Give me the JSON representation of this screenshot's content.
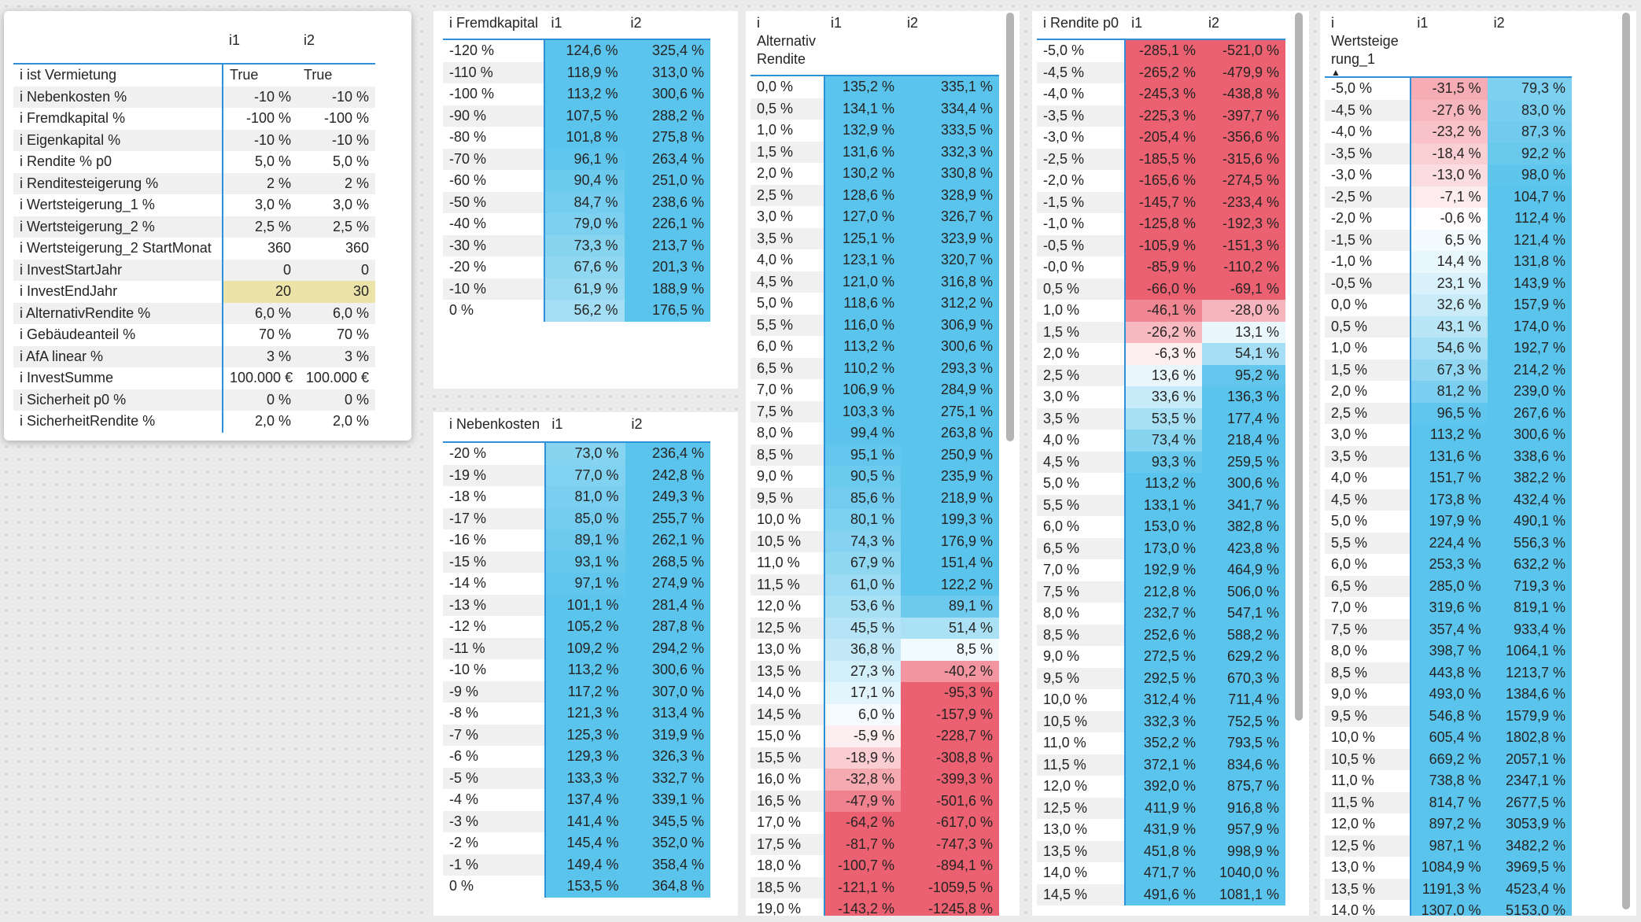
{
  "params": {
    "headers": [
      "",
      "i1",
      "i2"
    ],
    "rows": [
      {
        "label": "i ist Vermietung",
        "v1": "True",
        "v2": "True"
      },
      {
        "label": "i Nebenkosten %",
        "v1": "-10 %",
        "v2": "-10 %"
      },
      {
        "label": "i Fremdkapital %",
        "v1": "-100 %",
        "v2": "-100 %"
      },
      {
        "label": "i Eigenkapital %",
        "v1": "-10 %",
        "v2": "-10 %"
      },
      {
        "label": "i Rendite % p0",
        "v1": "5,0 %",
        "v2": "5,0 %"
      },
      {
        "label": "i Renditesteigerung %",
        "v1": "2 %",
        "v2": "2 %"
      },
      {
        "label": "i Wertsteigerung_1 %",
        "v1": "3,0 %",
        "v2": "3,0 %"
      },
      {
        "label": "i Wertsteigerung_2 %",
        "v1": "2,5 %",
        "v2": "2,5 %"
      },
      {
        "label": "i Wertsteigerung_2 StartMonat",
        "v1": "360",
        "v2": "360"
      },
      {
        "label": "i InvestStartJahr",
        "v1": "0",
        "v2": "0"
      },
      {
        "label": "i InvestEndJahr",
        "v1": "20",
        "v2": "30"
      },
      {
        "label": "i AlternativRendite %",
        "v1": "6,0 %",
        "v2": "6,0 %"
      },
      {
        "label": "i Gebäudeanteil %",
        "v1": "70 %",
        "v2": "70 %"
      },
      {
        "label": "i AfA linear %",
        "v1": "3 %",
        "v2": "3 %"
      },
      {
        "label": "i InvestSumme",
        "v1": "100.000 €",
        "v2": "100.000 €"
      },
      {
        "label": "i Sicherheit p0 %",
        "v1": "0 %",
        "v2": "0 %"
      },
      {
        "label": "i SicherheitRendite %",
        "v1": "2,0 %",
        "v2": "2,0 %"
      }
    ]
  },
  "fremdkapital": {
    "headers": [
      "i Fremdkapital",
      "i1",
      "i2"
    ],
    "rows": [
      [
        "-120 %",
        "124,6 %",
        "325,4 %"
      ],
      [
        "-110 %",
        "118,9 %",
        "313,0 %"
      ],
      [
        "-100 %",
        "113,2 %",
        "300,6 %"
      ],
      [
        "-90 %",
        "107,5 %",
        "288,2 %"
      ],
      [
        "-80 %",
        "101,8 %",
        "275,8 %"
      ],
      [
        "-70 %",
        "96,1 %",
        "263,4 %"
      ],
      [
        "-60 %",
        "90,4 %",
        "251,0 %"
      ],
      [
        "-50 %",
        "84,7 %",
        "238,6 %"
      ],
      [
        "-40 %",
        "79,0 %",
        "226,1 %"
      ],
      [
        "-30 %",
        "73,3 %",
        "213,7 %"
      ],
      [
        "-20 %",
        "67,6 %",
        "201,3 %"
      ],
      [
        "-10 %",
        "61,9 %",
        "188,9 %"
      ],
      [
        "0 %",
        "56,2 %",
        "176,5 %"
      ]
    ]
  },
  "nebenkosten": {
    "headers": [
      "i Nebenkosten",
      "i1",
      "i2"
    ],
    "rows": [
      [
        "-20 %",
        "73,0 %",
        "236,4 %"
      ],
      [
        "-19 %",
        "77,0 %",
        "242,8 %"
      ],
      [
        "-18 %",
        "81,0 %",
        "249,3 %"
      ],
      [
        "-17 %",
        "85,0 %",
        "255,7 %"
      ],
      [
        "-16 %",
        "89,1 %",
        "262,1 %"
      ],
      [
        "-15 %",
        "93,1 %",
        "268,5 %"
      ],
      [
        "-14 %",
        "97,1 %",
        "274,9 %"
      ],
      [
        "-13 %",
        "101,1 %",
        "281,4 %"
      ],
      [
        "-12 %",
        "105,2 %",
        "287,8 %"
      ],
      [
        "-11 %",
        "109,2 %",
        "294,2 %"
      ],
      [
        "-10 %",
        "113,2 %",
        "300,6 %"
      ],
      [
        "-9 %",
        "117,2 %",
        "307,0 %"
      ],
      [
        "-8 %",
        "121,3 %",
        "313,4 %"
      ],
      [
        "-7 %",
        "125,3 %",
        "319,9 %"
      ],
      [
        "-6 %",
        "129,3 %",
        "326,3 %"
      ],
      [
        "-5 %",
        "133,3 %",
        "332,7 %"
      ],
      [
        "-4 %",
        "137,4 %",
        "339,1 %"
      ],
      [
        "-3 %",
        "141,4 %",
        "345,5 %"
      ],
      [
        "-2 %",
        "145,4 %",
        "352,0 %"
      ],
      [
        "-1 %",
        "149,4 %",
        "358,4 %"
      ],
      [
        "0 %",
        "153,5 %",
        "364,8 %"
      ]
    ]
  },
  "alternativ": {
    "headers": [
      "i Alternativ Rendite",
      "i1",
      "i2"
    ],
    "rows": [
      [
        "0,0 %",
        "135,2 %",
        "335,1 %"
      ],
      [
        "0,5 %",
        "134,1 %",
        "334,4 %"
      ],
      [
        "1,0 %",
        "132,9 %",
        "333,5 %"
      ],
      [
        "1,5 %",
        "131,6 %",
        "332,3 %"
      ],
      [
        "2,0 %",
        "130,2 %",
        "330,8 %"
      ],
      [
        "2,5 %",
        "128,6 %",
        "328,9 %"
      ],
      [
        "3,0 %",
        "127,0 %",
        "326,7 %"
      ],
      [
        "3,5 %",
        "125,1 %",
        "323,9 %"
      ],
      [
        "4,0 %",
        "123,1 %",
        "320,7 %"
      ],
      [
        "4,5 %",
        "121,0 %",
        "316,8 %"
      ],
      [
        "5,0 %",
        "118,6 %",
        "312,2 %"
      ],
      [
        "5,5 %",
        "116,0 %",
        "306,9 %"
      ],
      [
        "6,0 %",
        "113,2 %",
        "300,6 %"
      ],
      [
        "6,5 %",
        "110,2 %",
        "293,3 %"
      ],
      [
        "7,0 %",
        "106,9 %",
        "284,9 %"
      ],
      [
        "7,5 %",
        "103,3 %",
        "275,1 %"
      ],
      [
        "8,0 %",
        "99,4 %",
        "263,8 %"
      ],
      [
        "8,5 %",
        "95,1 %",
        "250,9 %"
      ],
      [
        "9,0 %",
        "90,5 %",
        "235,9 %"
      ],
      [
        "9,5 %",
        "85,6 %",
        "218,9 %"
      ],
      [
        "10,0 %",
        "80,1 %",
        "199,3 %"
      ],
      [
        "10,5 %",
        "74,3 %",
        "176,9 %"
      ],
      [
        "11,0 %",
        "67,9 %",
        "151,4 %"
      ],
      [
        "11,5 %",
        "61,0 %",
        "122,2 %"
      ],
      [
        "12,0 %",
        "53,6 %",
        "89,1 %"
      ],
      [
        "12,5 %",
        "45,5 %",
        "51,4 %"
      ],
      [
        "13,0 %",
        "36,8 %",
        "8,5 %"
      ],
      [
        "13,5 %",
        "27,3 %",
        "-40,2 %"
      ],
      [
        "14,0 %",
        "17,1 %",
        "-95,3 %"
      ],
      [
        "14,5 %",
        "6,0 %",
        "-157,9 %"
      ],
      [
        "15,0 %",
        "-5,9 %",
        "-228,7 %"
      ],
      [
        "15,5 %",
        "-18,9 %",
        "-308,8 %"
      ],
      [
        "16,0 %",
        "-32,8 %",
        "-399,3 %"
      ],
      [
        "16,5 %",
        "-47,9 %",
        "-501,6 %"
      ],
      [
        "17,0 %",
        "-64,2 %",
        "-617,0 %"
      ],
      [
        "17,5 %",
        "-81,7 %",
        "-747,3 %"
      ],
      [
        "18,0 %",
        "-100,7 %",
        "-894,1 %"
      ],
      [
        "18,5 %",
        "-121,1 %",
        "-1059,5 %"
      ],
      [
        "19,0 %",
        "-143,2 %",
        "-1245,8 %"
      ]
    ]
  },
  "rendite": {
    "headers": [
      "i Rendite p0",
      "i1",
      "i2"
    ],
    "rows": [
      [
        "-5,0 %",
        "-285,1 %",
        "-521,0 %"
      ],
      [
        "-4,5 %",
        "-265,2 %",
        "-479,9 %"
      ],
      [
        "-4,0 %",
        "-245,3 %",
        "-438,8 %"
      ],
      [
        "-3,5 %",
        "-225,3 %",
        "-397,7 %"
      ],
      [
        "-3,0 %",
        "-205,4 %",
        "-356,6 %"
      ],
      [
        "-2,5 %",
        "-185,5 %",
        "-315,6 %"
      ],
      [
        "-2,0 %",
        "-165,6 %",
        "-274,5 %"
      ],
      [
        "-1,5 %",
        "-145,7 %",
        "-233,4 %"
      ],
      [
        "-1,0 %",
        "-125,8 %",
        "-192,3 %"
      ],
      [
        "-0,5 %",
        "-105,9 %",
        "-151,3 %"
      ],
      [
        "-0,0 %",
        "-85,9 %",
        "-110,2 %"
      ],
      [
        "0,5 %",
        "-66,0 %",
        "-69,1 %"
      ],
      [
        "1,0 %",
        "-46,1 %",
        "-28,0 %"
      ],
      [
        "1,5 %",
        "-26,2 %",
        "13,1 %"
      ],
      [
        "2,0 %",
        "-6,3 %",
        "54,1 %"
      ],
      [
        "2,5 %",
        "13,6 %",
        "95,2 %"
      ],
      [
        "3,0 %",
        "33,6 %",
        "136,3 %"
      ],
      [
        "3,5 %",
        "53,5 %",
        "177,4 %"
      ],
      [
        "4,0 %",
        "73,4 %",
        "218,4 %"
      ],
      [
        "4,5 %",
        "93,3 %",
        "259,5 %"
      ],
      [
        "5,0 %",
        "113,2 %",
        "300,6 %"
      ],
      [
        "5,5 %",
        "133,1 %",
        "341,7 %"
      ],
      [
        "6,0 %",
        "153,0 %",
        "382,8 %"
      ],
      [
        "6,5 %",
        "173,0 %",
        "423,8 %"
      ],
      [
        "7,0 %",
        "192,9 %",
        "464,9 %"
      ],
      [
        "7,5 %",
        "212,8 %",
        "506,0 %"
      ],
      [
        "8,0 %",
        "232,7 %",
        "547,1 %"
      ],
      [
        "8,5 %",
        "252,6 %",
        "588,2 %"
      ],
      [
        "9,0 %",
        "272,5 %",
        "629,2 %"
      ],
      [
        "9,5 %",
        "292,5 %",
        "670,3 %"
      ],
      [
        "10,0 %",
        "312,4 %",
        "711,4 %"
      ],
      [
        "10,5 %",
        "332,3 %",
        "752,5 %"
      ],
      [
        "11,0 %",
        "352,2 %",
        "793,5 %"
      ],
      [
        "11,5 %",
        "372,1 %",
        "834,6 %"
      ],
      [
        "12,0 %",
        "392,0 %",
        "875,7 %"
      ],
      [
        "12,5 %",
        "411,9 %",
        "916,8 %"
      ],
      [
        "13,0 %",
        "431,9 %",
        "957,9 %"
      ],
      [
        "13,5 %",
        "451,8 %",
        "998,9 %"
      ],
      [
        "14,0 %",
        "471,7 %",
        "1040,0 %"
      ],
      [
        "14,5 %",
        "491,6 %",
        "1081,1 %"
      ]
    ]
  },
  "wertsteigerung": {
    "headers": [
      "i Wertsteige rung_1",
      "i1",
      "i2"
    ],
    "sort_icon": "sort-ascending-icon",
    "rows": [
      [
        "-5,0 %",
        "-31,5 %",
        "79,3 %"
      ],
      [
        "-4,5 %",
        "-27,6 %",
        "83,0 %"
      ],
      [
        "-4,0 %",
        "-23,2 %",
        "87,3 %"
      ],
      [
        "-3,5 %",
        "-18,4 %",
        "92,2 %"
      ],
      [
        "-3,0 %",
        "-13,0 %",
        "98,0 %"
      ],
      [
        "-2,5 %",
        "-7,1 %",
        "104,7 %"
      ],
      [
        "-2,0 %",
        "-0,6 %",
        "112,4 %"
      ],
      [
        "-1,5 %",
        "6,5 %",
        "121,4 %"
      ],
      [
        "-1,0 %",
        "14,4 %",
        "131,8 %"
      ],
      [
        "-0,5 %",
        "23,1 %",
        "143,9 %"
      ],
      [
        "0,0 %",
        "32,6 %",
        "157,9 %"
      ],
      [
        "0,5 %",
        "43,1 %",
        "174,0 %"
      ],
      [
        "1,0 %",
        "54,6 %",
        "192,7 %"
      ],
      [
        "1,5 %",
        "67,3 %",
        "214,2 %"
      ],
      [
        "2,0 %",
        "81,2 %",
        "239,0 %"
      ],
      [
        "2,5 %",
        "96,5 %",
        "267,6 %"
      ],
      [
        "3,0 %",
        "113,2 %",
        "300,6 %"
      ],
      [
        "3,5 %",
        "131,6 %",
        "338,6 %"
      ],
      [
        "4,0 %",
        "151,7 %",
        "382,2 %"
      ],
      [
        "4,5 %",
        "173,8 %",
        "432,4 %"
      ],
      [
        "5,0 %",
        "197,9 %",
        "490,1 %"
      ],
      [
        "5,5 %",
        "224,4 %",
        "556,3 %"
      ],
      [
        "6,0 %",
        "253,3 %",
        "632,2 %"
      ],
      [
        "6,5 %",
        "285,0 %",
        "719,3 %"
      ],
      [
        "7,0 %",
        "319,6 %",
        "819,1 %"
      ],
      [
        "7,5 %",
        "357,4 %",
        "933,4 %"
      ],
      [
        "8,0 %",
        "398,7 %",
        "1064,1 %"
      ],
      [
        "8,5 %",
        "443,8 %",
        "1213,7 %"
      ],
      [
        "9,0 %",
        "493,0 %",
        "1384,6 %"
      ],
      [
        "9,5 %",
        "546,8 %",
        "1579,9 %"
      ],
      [
        "10,0 %",
        "605,4 %",
        "1802,8 %"
      ],
      [
        "10,5 %",
        "669,2 %",
        "2057,1 %"
      ],
      [
        "11,0 %",
        "738,8 %",
        "2347,1 %"
      ],
      [
        "11,5 %",
        "814,7 %",
        "2677,5 %"
      ],
      [
        "12,0 %",
        "897,2 %",
        "3053,9 %"
      ],
      [
        "12,5 %",
        "987,1 %",
        "3482,2 %"
      ],
      [
        "13,0 %",
        "1084,9 %",
        "3969,5 %"
      ],
      [
        "13,5 %",
        "1191,3 %",
        "4523,4 %"
      ],
      [
        "14,0 %",
        "1307,0 %",
        "5153,0 %"
      ]
    ]
  },
  "colors": {
    "accent_border": "#2f8fd8",
    "blue_high": "#5bc4ec",
    "red_low": "#ec6171",
    "highlight_cell": "#ece3a9",
    "zebra": "#f0f0f0"
  }
}
